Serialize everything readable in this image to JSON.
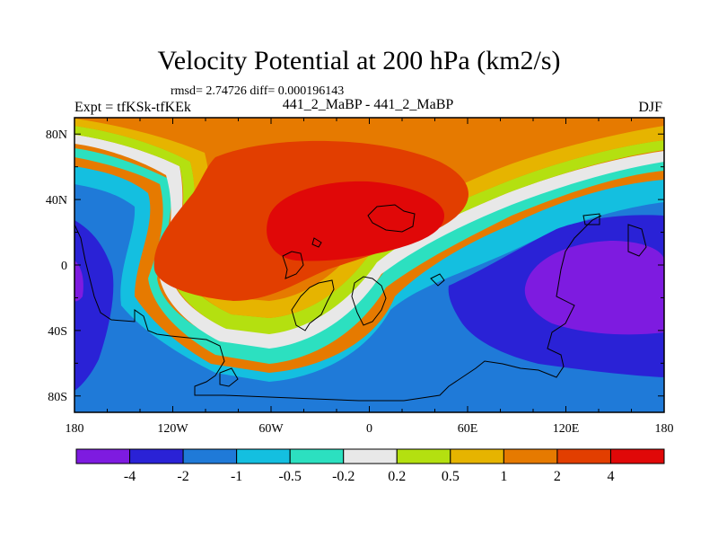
{
  "chart_data": {
    "type": "contour-map",
    "title": "Velocity Potential at 200 hPa (km2/s)",
    "stats": "rmsd= 2.74726 diff= 0.000196143",
    "left_label": "Expt = tfKSk-tfKEk",
    "center_label": "441_2_MaBP - 441_2_MaBP",
    "right_label": "DJF",
    "x_ticks": [
      "180",
      "120W",
      "60W",
      "0",
      "60E",
      "120E",
      "180"
    ],
    "x_tick_values": [
      -180,
      -120,
      -60,
      0,
      60,
      120,
      180
    ],
    "y_ticks": [
      "80N",
      "40N",
      "0",
      "40S",
      "80S"
    ],
    "y_tick_values": [
      80,
      40,
      0,
      -40,
      -80
    ],
    "xlim": [
      -180,
      180
    ],
    "ylim": [
      -90,
      90
    ],
    "colorbar": {
      "levels": [
        "-4",
        "-2",
        "-1",
        "-0.5",
        "-0.2",
        "0.2",
        "0.5",
        "1",
        "2",
        "4"
      ],
      "colors": [
        "#7e1be0",
        "#2a22d6",
        "#1f7ad8",
        "#14bfe0",
        "#2ce0c0",
        "#e8e8e8",
        "#b4e010",
        "#e6b400",
        "#e67a00",
        "#e23e00",
        "#e00808"
      ]
    }
  }
}
